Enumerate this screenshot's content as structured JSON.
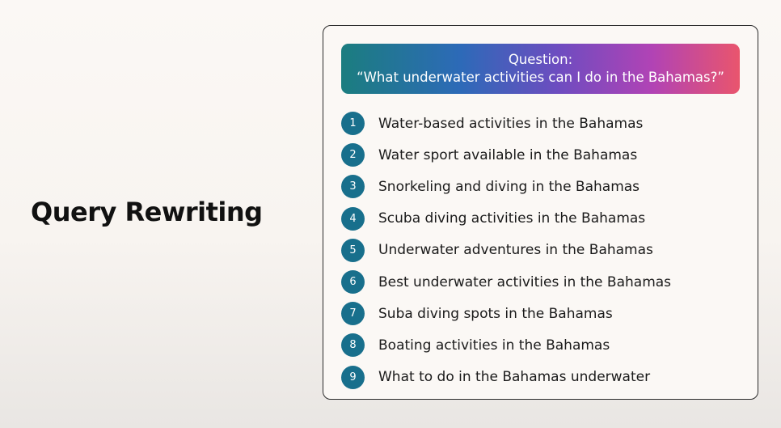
{
  "slide": {
    "title": "Query Rewriting"
  },
  "question": {
    "label": "Question:",
    "text": "“What underwater activities can I do in the Bahamas?”"
  },
  "rewrites": [
    {
      "num": "1",
      "text": "Water-based activities in the Bahamas"
    },
    {
      "num": "2",
      "text": "Water sport available in the Bahamas"
    },
    {
      "num": "3",
      "text": "Snorkeling and diving in the Bahamas"
    },
    {
      "num": "4",
      "text": "Scuba diving activities in the Bahamas"
    },
    {
      "num": "5",
      "text": "Underwater adventures in the Bahamas"
    },
    {
      "num": "6",
      "text": "Best underwater activities in the Bahamas"
    },
    {
      "num": "7",
      "text": "Suba diving spots in the Bahamas"
    },
    {
      "num": "8",
      "text": "Boating activities in the Bahamas"
    },
    {
      "num": "9",
      "text": "What to do in the Bahamas underwater"
    }
  ],
  "colors": {
    "badge": "#186f8c",
    "gradient_start": "#1b7d7f",
    "gradient_end": "#e9556d"
  }
}
